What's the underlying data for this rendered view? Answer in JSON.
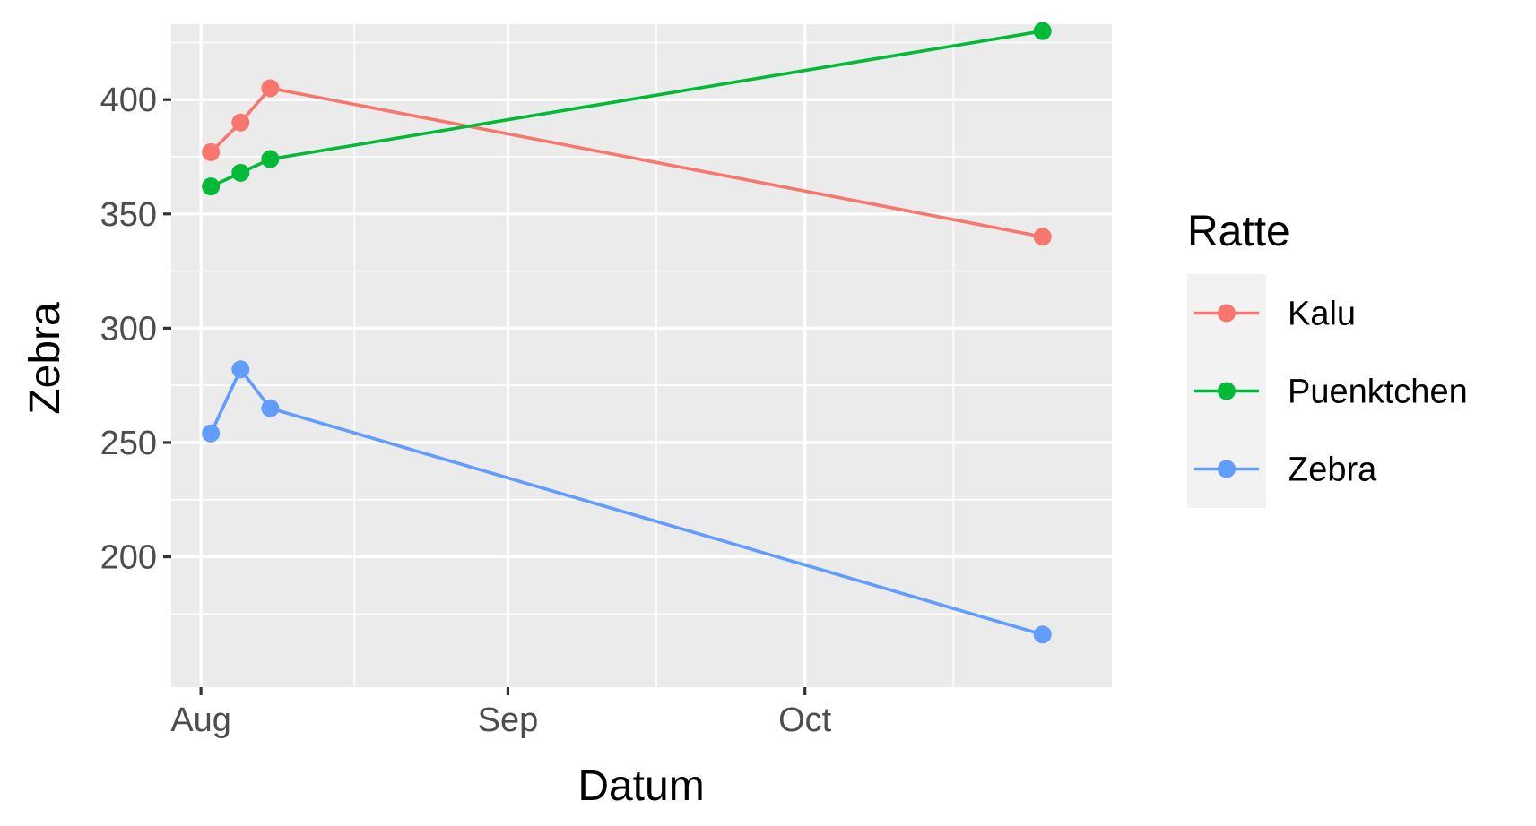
{
  "chart_data": {
    "type": "line",
    "xlabel": "Datum",
    "ylabel": "Zebra",
    "x_ticks": [
      "Aug",
      "Sep",
      "Oct"
    ],
    "y_ticks": [
      200,
      250,
      300,
      350,
      400
    ],
    "xlim": [
      "2023-07-29",
      "2023-11-01"
    ],
    "ylim": [
      143,
      433
    ],
    "grid": true,
    "legend": {
      "title": "Ratte",
      "position": "right"
    },
    "x": [
      "2023-08-02",
      "2023-08-05",
      "2023-08-08",
      "2023-10-25"
    ],
    "series": [
      {
        "name": "Kalu",
        "color": "#F8766D",
        "values": [
          377,
          390,
          405,
          340
        ]
      },
      {
        "name": "Puenktchen",
        "color": "#00BA38",
        "values": [
          362,
          368,
          374,
          430
        ]
      },
      {
        "name": "Zebra",
        "color": "#619CFF",
        "values": [
          254,
          282,
          265,
          166
        ]
      }
    ]
  }
}
